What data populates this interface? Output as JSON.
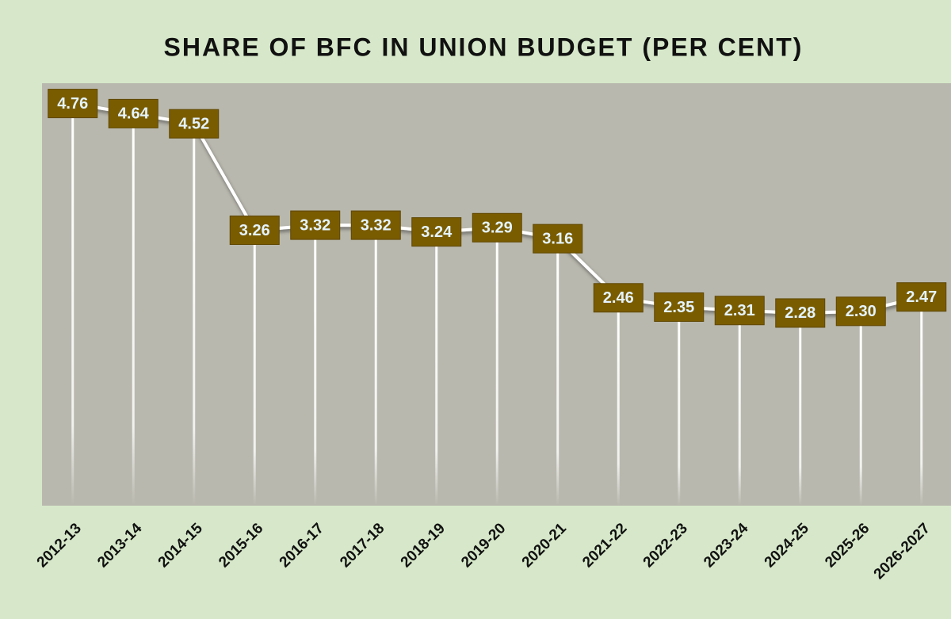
{
  "chart_data": {
    "type": "line",
    "title": "SHARE OF BFC IN UNION BUDGET (PER CENT)",
    "categories": [
      "2012-13",
      "2013-14",
      "2014-15",
      "2015-16",
      "2016-17",
      "2017-18",
      "2018-19",
      "2019-20",
      "2020-21",
      "2021-22",
      "2022-23",
      "2023-24",
      "2024-25",
      "2025-26",
      "2026-2027"
    ],
    "values": [
      4.76,
      4.64,
      4.52,
      3.26,
      3.32,
      3.32,
      3.24,
      3.29,
      3.16,
      2.46,
      2.35,
      2.31,
      2.28,
      2.3,
      2.47
    ],
    "value_labels": [
      "4.76",
      "4.64",
      "4.52",
      "3.26",
      "3.32",
      "3.32",
      "3.24",
      "3.29",
      "3.16",
      "2.46",
      "2.35",
      "2.31",
      "2.28",
      "2.30",
      "2.47"
    ],
    "color": "#ffffff",
    "label_color": "#7a5c00",
    "ylim": [
      0,
      5
    ]
  }
}
